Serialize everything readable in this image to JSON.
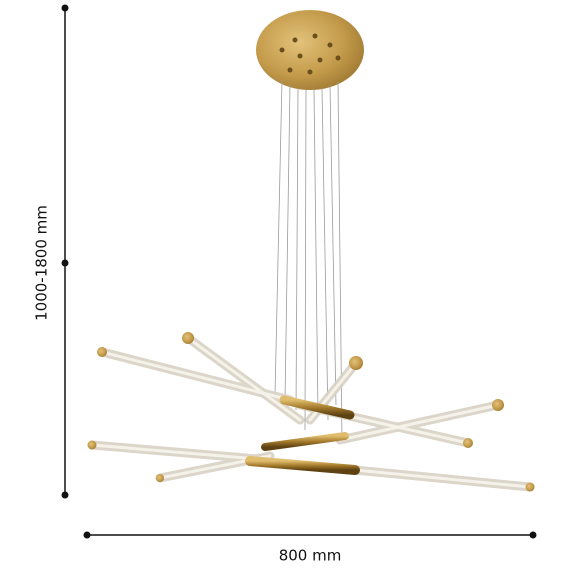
{
  "dimensions": {
    "height": "1000-1800 mm",
    "width": "800 mm"
  }
}
